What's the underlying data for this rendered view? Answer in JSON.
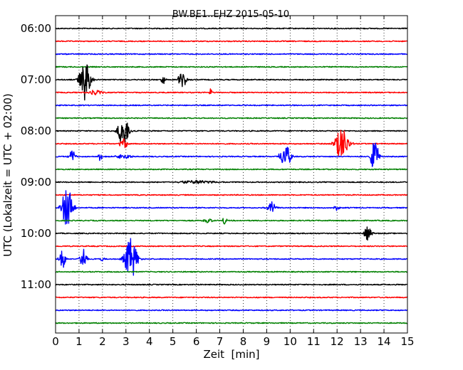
{
  "chart_data": {
    "type": "line",
    "title": "BW.BE1..EHZ 2015-05-10",
    "xlabel": "Zeit  [min]",
    "ylabel": "UTC (Lokalzeit = UTC + 02:00)",
    "xlim": [
      0,
      15
    ],
    "x_ticks": [
      0,
      1,
      2,
      3,
      4,
      5,
      6,
      7,
      8,
      9,
      10,
      11,
      12,
      13,
      14,
      15
    ],
    "x_tick_labels": [
      "0",
      "1",
      "2",
      "3",
      "4",
      "5",
      "6",
      "7",
      "8",
      "9",
      "10",
      "11",
      "12",
      "13",
      "14",
      "15"
    ],
    "y_tick_labels": [
      "06:00",
      "07:00",
      "08:00",
      "09:00",
      "10:00",
      "11:00"
    ],
    "grid": "vertical dotted",
    "trace_interval_minutes": 15,
    "trace_colors": [
      "#000000",
      "#ff0000",
      "#0000ff",
      "#008000"
    ],
    "series": [
      {
        "start": "06:00",
        "events": []
      },
      {
        "start": "06:15",
        "events": []
      },
      {
        "start": "06:30",
        "events": []
      },
      {
        "start": "06:45",
        "events": []
      },
      {
        "start": "07:00",
        "events": [
          {
            "t": 1.25,
            "amplitude": 1.0,
            "duration": 0.8
          },
          {
            "t": 4.6,
            "amplitude": 0.25,
            "duration": 0.3
          },
          {
            "t": 5.4,
            "amplitude": 0.4,
            "duration": 0.6
          }
        ]
      },
      {
        "start": "07:15",
        "events": [
          {
            "t": 1.7,
            "amplitude": 0.1,
            "duration": 1.2
          },
          {
            "t": 6.6,
            "amplitude": 0.25,
            "duration": 0.2
          }
        ]
      },
      {
        "start": "07:30",
        "events": []
      },
      {
        "start": "07:45",
        "events": []
      },
      {
        "start": "08:00",
        "events": [
          {
            "t": 2.9,
            "amplitude": 0.75,
            "duration": 0.8
          }
        ]
      },
      {
        "start": "08:15",
        "events": [
          {
            "t": 2.9,
            "amplitude": 0.25,
            "duration": 0.6
          },
          {
            "t": 12.2,
            "amplitude": 0.75,
            "duration": 1.0
          }
        ]
      },
      {
        "start": "08:30",
        "events": [
          {
            "t": 0.7,
            "amplitude": 0.3,
            "duration": 0.5
          },
          {
            "t": 1.9,
            "amplitude": 0.2,
            "duration": 0.3
          },
          {
            "t": 2.9,
            "amplitude": 0.15,
            "duration": 1.0
          },
          {
            "t": 9.8,
            "amplitude": 0.55,
            "duration": 0.8
          },
          {
            "t": 13.6,
            "amplitude": 0.75,
            "duration": 0.6
          }
        ]
      },
      {
        "start": "08:45",
        "events": []
      },
      {
        "start": "09:00",
        "events": [
          {
            "t": 6.0,
            "amplitude": 0.08,
            "duration": 3.0
          }
        ]
      },
      {
        "start": "09:15",
        "events": []
      },
      {
        "start": "09:30",
        "events": [
          {
            "t": 0.5,
            "amplitude": 1.0,
            "duration": 0.8
          },
          {
            "t": 9.2,
            "amplitude": 0.35,
            "duration": 0.6
          },
          {
            "t": 12.0,
            "amplitude": 0.12,
            "duration": 0.5
          }
        ]
      },
      {
        "start": "09:45",
        "events": [
          {
            "t": 6.5,
            "amplitude": 0.12,
            "duration": 0.6
          },
          {
            "t": 7.2,
            "amplitude": 0.2,
            "duration": 0.3
          }
        ]
      },
      {
        "start": "10:00",
        "events": [
          {
            "t": 13.3,
            "amplitude": 0.3,
            "duration": 0.6
          }
        ]
      },
      {
        "start": "10:15",
        "events": []
      },
      {
        "start": "10:30",
        "events": [
          {
            "t": 0.3,
            "amplitude": 0.5,
            "duration": 0.5
          },
          {
            "t": 1.2,
            "amplitude": 0.5,
            "duration": 0.5
          },
          {
            "t": 2.0,
            "amplitude": 0.15,
            "duration": 0.3
          },
          {
            "t": 3.2,
            "amplitude": 1.0,
            "duration": 0.9
          }
        ]
      },
      {
        "start": "10:45",
        "events": []
      },
      {
        "start": "11:00",
        "events": []
      },
      {
        "start": "11:15",
        "events": []
      },
      {
        "start": "11:30",
        "events": []
      },
      {
        "start": "11:45",
        "events": []
      }
    ]
  }
}
